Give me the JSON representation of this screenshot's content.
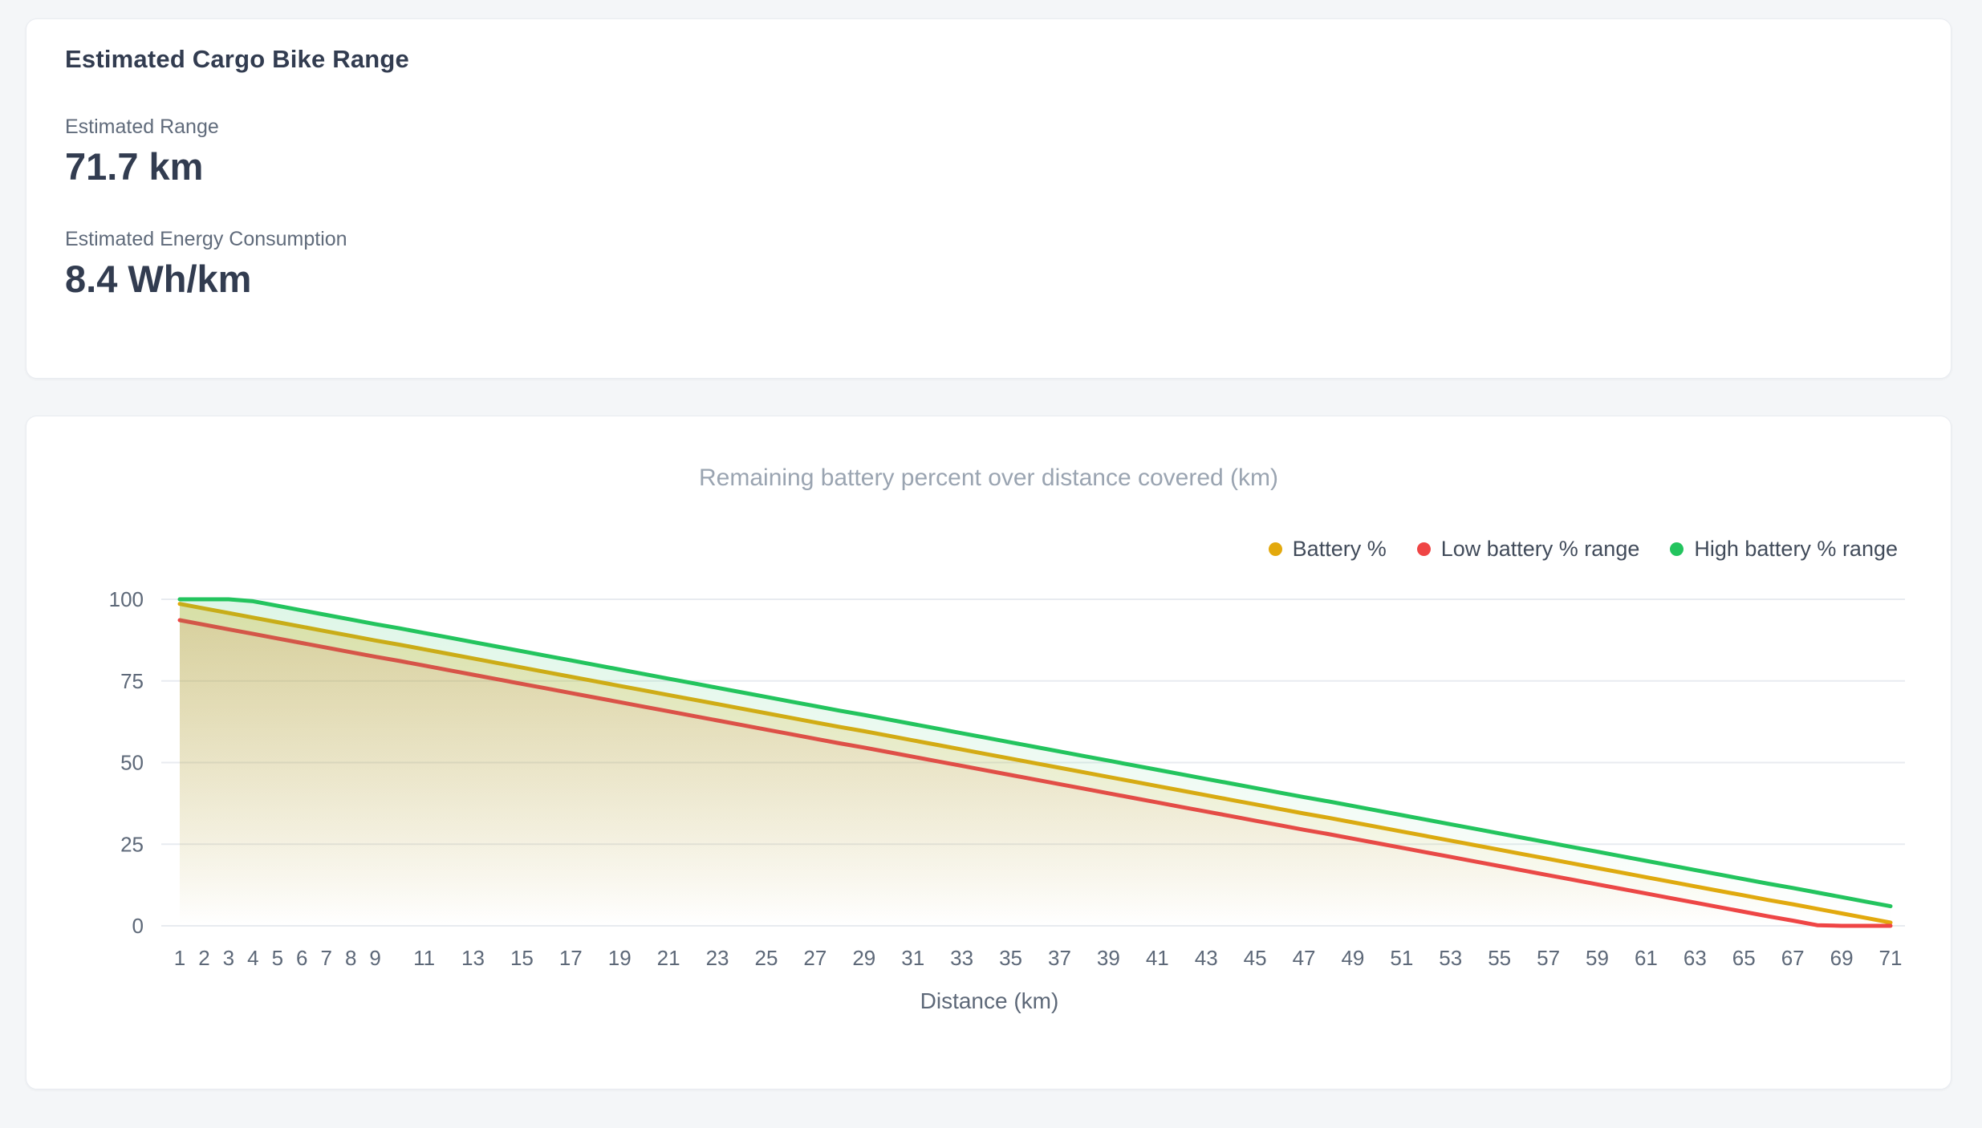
{
  "page": {
    "background": "#f4f6f8"
  },
  "summary_card": {
    "title": "Estimated Cargo Bike Range",
    "stats": [
      {
        "label": "Estimated Range",
        "value": "71.7 km"
      },
      {
        "label": "Estimated Energy Consumption",
        "value": "8.4 Wh/km"
      }
    ]
  },
  "chart_data": {
    "type": "line",
    "title": "Remaining battery percent over distance covered (km)",
    "xlabel": "Distance (km)",
    "ylabel": "",
    "ylim": [
      0,
      100
    ],
    "y_ticks": [
      0,
      25,
      50,
      75,
      100
    ],
    "grid": "horizontal",
    "legend_position": "top-right",
    "area_fill": true,
    "x": [
      1,
      2,
      3,
      4,
      5,
      6,
      7,
      8,
      9,
      10,
      11,
      12,
      13,
      14,
      15,
      16,
      17,
      18,
      19,
      20,
      21,
      22,
      23,
      24,
      25,
      26,
      27,
      28,
      29,
      30,
      31,
      32,
      33,
      34,
      35,
      36,
      37,
      38,
      39,
      40,
      41,
      42,
      43,
      44,
      45,
      46,
      47,
      48,
      49,
      50,
      51,
      52,
      53,
      54,
      55,
      56,
      57,
      58,
      59,
      60,
      61,
      62,
      63,
      64,
      65,
      66,
      67,
      68,
      69,
      70,
      71
    ],
    "x_tick_labels": [
      "1",
      "2",
      "3",
      "4",
      "5",
      "6",
      "7",
      "8",
      "9",
      "11",
      "13",
      "15",
      "17",
      "19",
      "21",
      "23",
      "25",
      "27",
      "29",
      "31",
      "33",
      "35",
      "37",
      "39",
      "41",
      "43",
      "45",
      "47",
      "49",
      "51",
      "53",
      "55",
      "57",
      "59",
      "61",
      "63",
      "65",
      "67",
      "69",
      "71"
    ],
    "series": [
      {
        "name": "Battery %",
        "color": "#e3a90d",
        "fill_alpha": 0.32,
        "values": [
          98.6,
          97.2,
          95.8,
          94.4,
          93.0,
          91.6,
          90.2,
          88.8,
          87.4,
          86.1,
          84.7,
          83.3,
          81.9,
          80.5,
          79.1,
          77.7,
          76.3,
          74.9,
          73.5,
          72.1,
          70.7,
          69.3,
          67.9,
          66.5,
          65.1,
          63.7,
          62.3,
          60.9,
          59.6,
          58.2,
          56.8,
          55.4,
          54.0,
          52.6,
          51.2,
          49.8,
          48.4,
          47.0,
          45.6,
          44.2,
          42.8,
          41.4,
          40.0,
          38.6,
          37.2,
          35.8,
          34.4,
          33.1,
          31.7,
          30.3,
          28.9,
          27.5,
          26.1,
          24.7,
          23.3,
          21.9,
          20.5,
          19.1,
          17.7,
          16.3,
          14.9,
          13.5,
          12.1,
          10.7,
          9.3,
          7.9,
          6.6,
          5.2,
          3.8,
          2.4,
          1.0
        ]
      },
      {
        "name": "Low battery % range",
        "color": "#ef4545",
        "fill_alpha": 0.12,
        "values": [
          93.6,
          92.2,
          90.8,
          89.4,
          88.0,
          86.6,
          85.2,
          83.8,
          82.4,
          81.1,
          79.7,
          78.3,
          76.9,
          75.5,
          74.1,
          72.7,
          71.3,
          69.9,
          68.5,
          67.1,
          65.7,
          64.3,
          62.9,
          61.5,
          60.1,
          58.7,
          57.3,
          55.9,
          54.6,
          53.2,
          51.8,
          50.4,
          49.0,
          47.6,
          46.2,
          44.8,
          43.4,
          42.0,
          40.6,
          39.2,
          37.8,
          36.4,
          35.0,
          33.6,
          32.2,
          30.8,
          29.4,
          28.1,
          26.7,
          25.3,
          23.9,
          22.5,
          21.1,
          19.7,
          18.3,
          16.9,
          15.5,
          14.1,
          12.7,
          11.3,
          9.9,
          8.5,
          7.1,
          5.7,
          4.3,
          2.9,
          1.6,
          0.2,
          0,
          0,
          0
        ]
      },
      {
        "name": "High battery % range",
        "color": "#23c45e",
        "fill_alpha": 0.15,
        "values": [
          100,
          100,
          100,
          99.4,
          98.0,
          96.6,
          95.2,
          93.8,
          92.4,
          91.1,
          89.7,
          88.3,
          86.9,
          85.5,
          84.1,
          82.7,
          81.3,
          79.9,
          78.5,
          77.1,
          75.7,
          74.3,
          72.9,
          71.5,
          70.1,
          68.7,
          67.3,
          65.9,
          64.6,
          63.2,
          61.8,
          60.4,
          59.0,
          57.6,
          56.2,
          54.8,
          53.4,
          52.0,
          50.6,
          49.2,
          47.8,
          46.4,
          45.0,
          43.6,
          42.2,
          40.8,
          39.4,
          38.1,
          36.7,
          35.3,
          33.9,
          32.5,
          31.1,
          29.7,
          28.3,
          26.9,
          25.5,
          24.1,
          22.7,
          21.3,
          19.9,
          18.5,
          17.1,
          15.7,
          14.3,
          12.9,
          11.6,
          10.2,
          8.8,
          7.4,
          6.0
        ]
      }
    ]
  }
}
